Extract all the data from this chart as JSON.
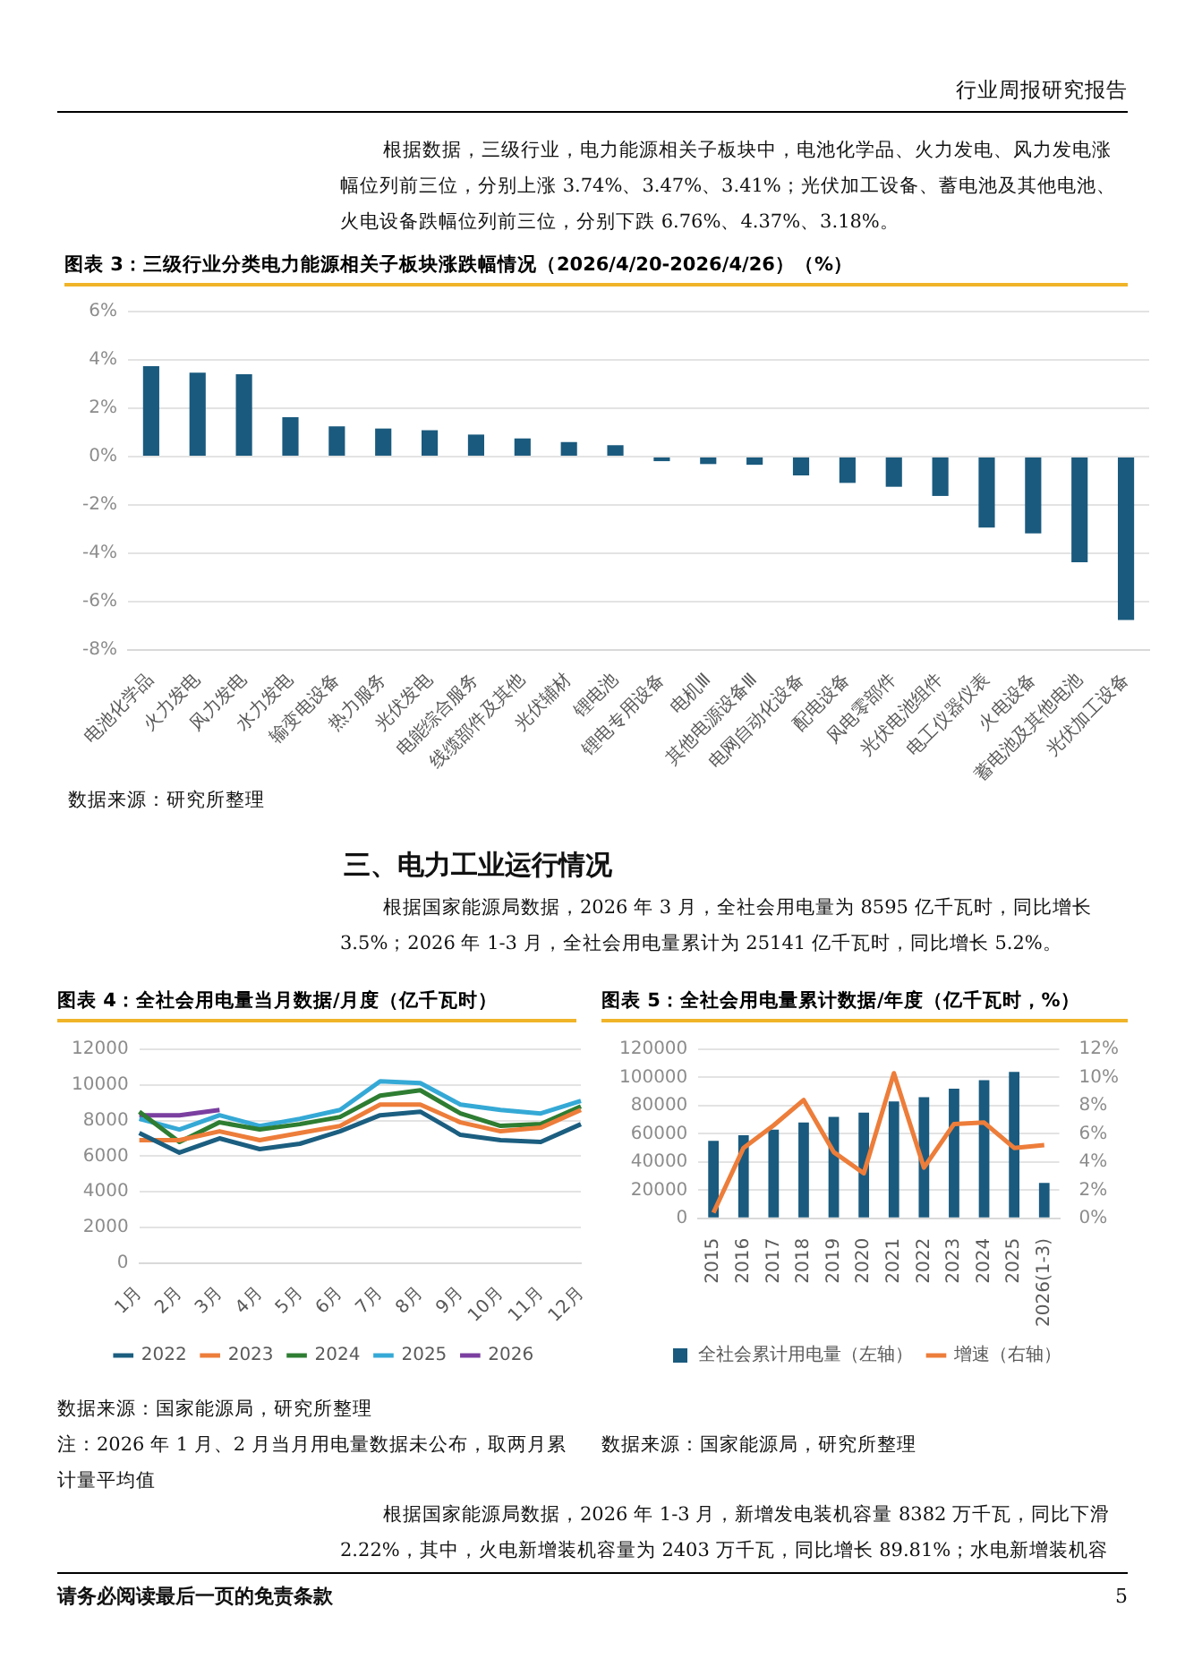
{
  "chart_data": [
    {
      "type": "bar",
      "title": "图表 3：三级行业分类电力能源相关子板块涨跌幅情况（2026/4/20-2026/4/26）（%）",
      "categories": [
        "电池化学品",
        "火力发电",
        "风力发电",
        "水力发电",
        "输变电设备",
        "热力服务",
        "光伏发电",
        "电能综合服务",
        "线缆部件及其他",
        "光伏辅材",
        "锂电池",
        "锂电专用设备",
        "电机Ⅲ",
        "其他电源设备Ⅲ",
        "电网自动化设备",
        "配电设备",
        "风电零部件",
        "光伏电池组件",
        "电工仪器仪表",
        "火电设备",
        "蓄电池及其他电池",
        "光伏加工设备"
      ],
      "values": [
        3.74,
        3.47,
        3.41,
        1.63,
        1.25,
        1.16,
        1.09,
        0.91,
        0.75,
        0.6,
        0.47,
        -0.19,
        -0.31,
        -0.34,
        -0.78,
        -1.09,
        -1.25,
        -1.63,
        -2.94,
        -3.18,
        -4.37,
        -6.76
      ],
      "color": "#1a5a7e",
      "ylim": [
        -8,
        6
      ],
      "yticks": [
        {
          "value": -8,
          "label": "-8%"
        },
        {
          "value": -6,
          "label": "-6%"
        },
        {
          "value": -4,
          "label": "-4%"
        },
        {
          "value": -2,
          "label": "-2%"
        },
        {
          "value": 0,
          "label": "0%"
        },
        {
          "value": 2,
          "label": "2%"
        },
        {
          "value": 4,
          "label": "4%"
        },
        {
          "value": 6,
          "label": "6%"
        }
      ],
      "grid": "y",
      "annotations": [
        "行业周报研究报告",
        "根据数据，三级行业，电力能源相关子板块中，电池化学品、火力发电、风力发电涨幅位列前三位，分别上涨 3.74%、3.47%、3.41%；光伏加工设备、蓄电池及其他电池、火电设备跌幅位列前三位，分别下跌 6.76%、4.37%、3.18%。",
        "数据来源：研究所整理"
      ]
    },
    {
      "type": "line",
      "title": "图表 4：全社会用电量当月数据/月度（亿千瓦时）",
      "categories": [
        "1月",
        "2月",
        "3月",
        "4月",
        "5月",
        "6月",
        "7月",
        "8月",
        "9月",
        "10月",
        "11月",
        "12月"
      ],
      "series": [
        {
          "name": "2022",
          "color": "#1b5e80",
          "values": [
            7300,
            6200,
            7000,
            6400,
            6700,
            7400,
            8300,
            8500,
            7200,
            6900,
            6800,
            7800
          ]
        },
        {
          "name": "2023",
          "color": "#ed7d3a",
          "values": [
            6900,
            6900,
            7400,
            6900,
            7300,
            7700,
            8900,
            8900,
            7900,
            7400,
            7600,
            8600
          ]
        },
        {
          "name": "2024",
          "color": "#2e7d32",
          "values": [
            8500,
            6800,
            7900,
            7500,
            7800,
            8200,
            9400,
            9700,
            8400,
            7700,
            7800,
            8800
          ]
        },
        {
          "name": "2025",
          "color": "#35a9d6",
          "values": [
            8100,
            7500,
            8300,
            7700,
            8100,
            8600,
            10200,
            10100,
            8900,
            8600,
            8400,
            9100
          ]
        },
        {
          "name": "2026",
          "color": "#7b3fa0",
          "values": [
            8300,
            8300,
            8595,
            null,
            null,
            null,
            null,
            null,
            null,
            null,
            null,
            null
          ]
        }
      ],
      "ylim": [
        0,
        12000
      ],
      "yticks": [
        0,
        2000,
        4000,
        6000,
        8000,
        10000,
        12000
      ],
      "grid": "y",
      "legend": "bottom",
      "marker": "none",
      "annotations": [
        "三、电力工业运行情况",
        "根据国家能源局数据，2026 年 3 月，全社会用电量为 8595 亿千瓦时，同比增长 3.5%；2026 年 1-3 月，全社会用电量累计为 25141 亿千瓦时，同比增长 5.2%。",
        "数据来源：国家能源局，研究所整理",
        "注：2026 年 1 月、2 月当月用电量数据未公布，取两月累计量平均值"
      ]
    },
    {
      "type": "bar",
      "title": "图表 5：全社会用电量累计数据/年度（亿千瓦时，%）",
      "categories": [
        "2015",
        "2016",
        "2017",
        "2018",
        "2019",
        "2020",
        "2021",
        "2022",
        "2023",
        "2024",
        "2025",
        "2026(1-3)"
      ],
      "series": [
        {
          "name": "全社会累计用电量（左轴）",
          "color": "#1a5a7e",
          "values": [
            55000,
            59000,
            63000,
            68000,
            72000,
            75000,
            83000,
            86000,
            92000,
            98000,
            104000,
            25141
          ]
        },
        {
          "name": "增速（右轴）",
          "type": "line",
          "axis": "y2",
          "color": "#ed7d3a",
          "values": [
            0.4,
            5.0,
            6.6,
            8.4,
            4.7,
            3.2,
            10.3,
            3.6,
            6.7,
            6.8,
            5.0,
            5.2
          ]
        }
      ],
      "ylim": [
        0,
        120000
      ],
      "yticks": [
        0,
        20000,
        40000,
        60000,
        80000,
        100000,
        120000
      ],
      "y2lim": [
        0,
        12
      ],
      "y2ticks": [
        {
          "value": 0,
          "label": "0%"
        },
        {
          "value": 2,
          "label": "2%"
        },
        {
          "value": 4,
          "label": "4%"
        },
        {
          "value": 6,
          "label": "6%"
        },
        {
          "value": 8,
          "label": "8%"
        },
        {
          "value": 10,
          "label": "10%"
        },
        {
          "value": 12,
          "label": "12%"
        }
      ],
      "grid": "y",
      "legend": "bottom",
      "marker": "none",
      "annotations": [
        "数据来源：国家能源局，研究所整理",
        "根据国家能源局数据，2026 年 1-3 月，新增发电装机容量 8382 万千瓦，同比下滑 2.22%，其中，火电新增装机容量为 2403 万千瓦，同比增长 89.81%；水电新增装机容",
        "请务必阅读最后一页的免责条款",
        "5"
      ]
    }
  ]
}
